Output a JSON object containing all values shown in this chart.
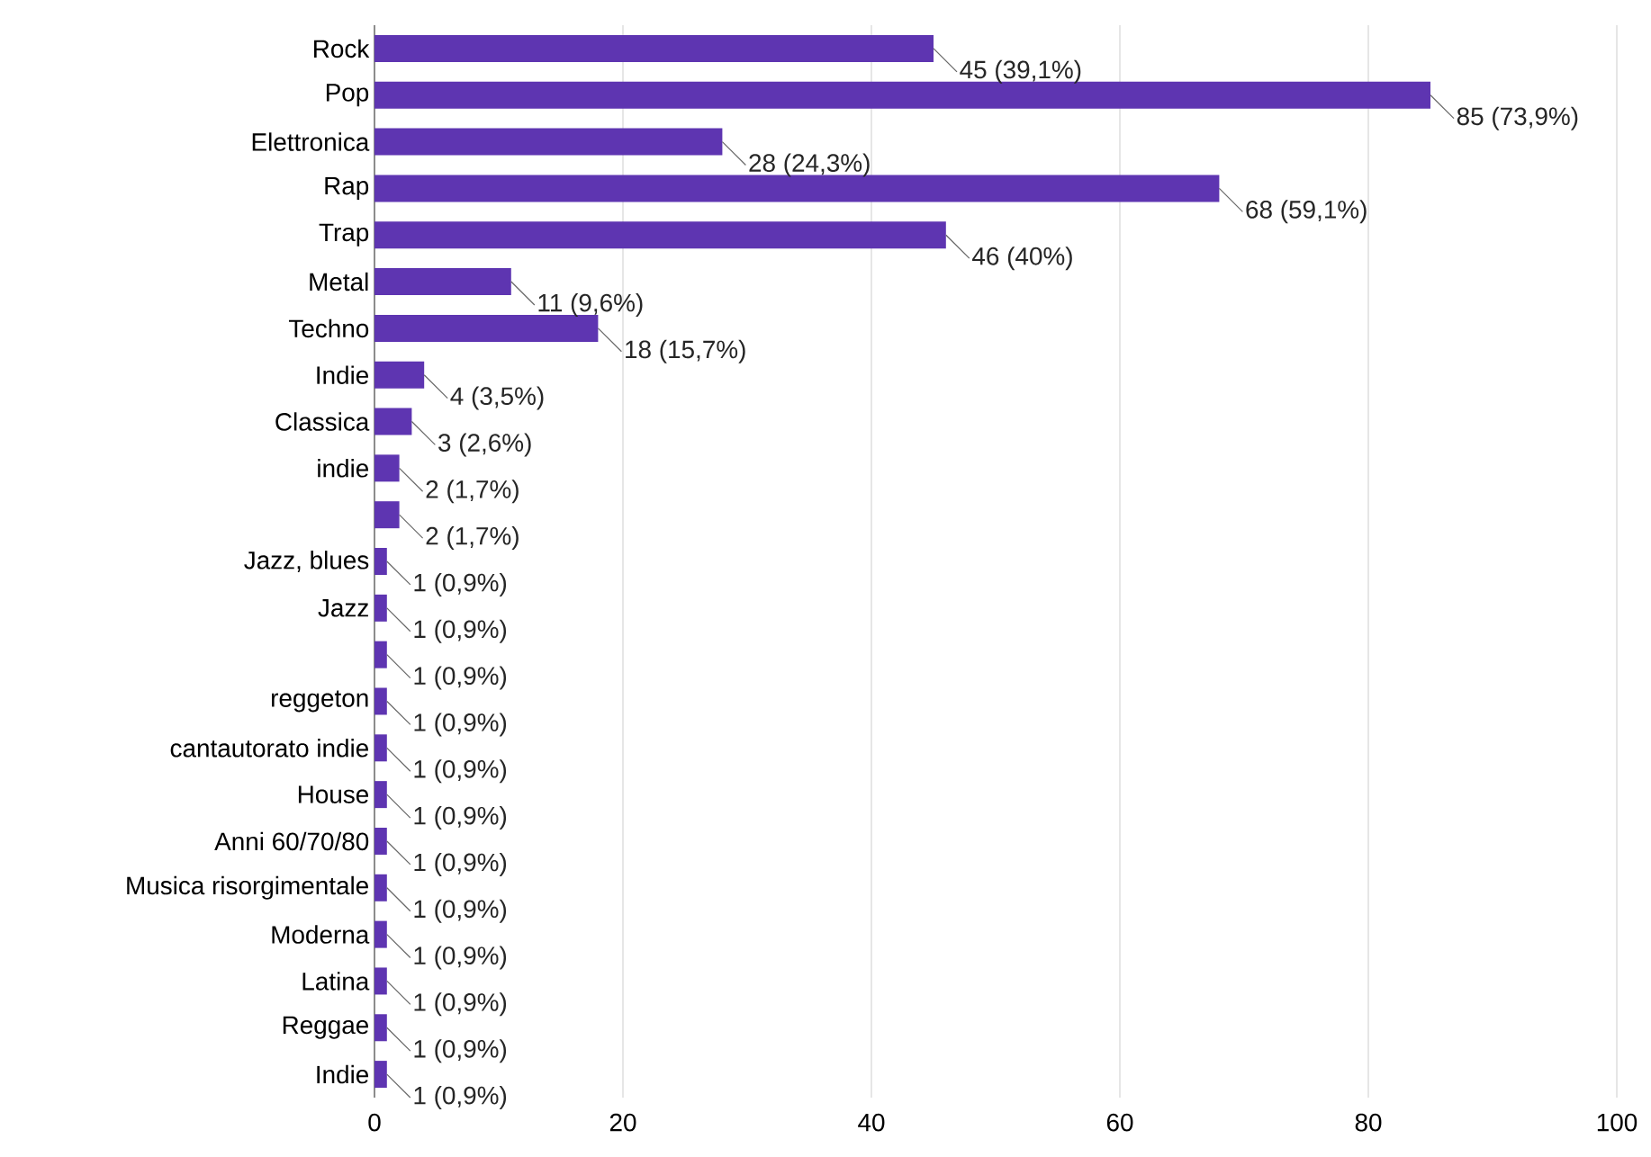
{
  "chart_data": {
    "type": "bar",
    "orientation": "horizontal",
    "color": "#5e35b1",
    "grid": "x",
    "categories": [
      "Rock",
      "Pop",
      "Elettronica",
      "Rap",
      "Trap",
      "Metal",
      "Techno",
      "Indie",
      "Classica",
      "indie",
      null,
      "Jazz, blues",
      "Jazz",
      null,
      "reggeton",
      "cantautorato indie",
      "House",
      "Anni 60/70/80",
      "Musica risorgimentale",
      "Moderna",
      "Latina",
      "Reggae",
      "Indie"
    ],
    "values": [
      45,
      85,
      28,
      68,
      46,
      11,
      18,
      4,
      3,
      2,
      2,
      1,
      1,
      1,
      1,
      1,
      1,
      1,
      1,
      1,
      1,
      1,
      1
    ],
    "value_labels": [
      "45 (39,1%)",
      "85 (73,9%)",
      "28 (24,3%)",
      "68 (59,1%)",
      "46 (40%)",
      "11 (9,6%)",
      "18 (15,7%)",
      "4 (3,5%)",
      "3 (2,6%)",
      "2 (1,7%)",
      "2 (1,7%)",
      "1 (0,9%)",
      "1 (0,9%)",
      "1 (0,9%)",
      "1 (0,9%)",
      "1 (0,9%)",
      "1 (0,9%)",
      "1 (0,9%)",
      "1 (0,9%)",
      "1 (0,9%)",
      "1 (0,9%)",
      "1 (0,9%)",
      "1 (0,9%)"
    ],
    "xlim": [
      0,
      100
    ],
    "xticks": [
      0,
      20,
      40,
      60,
      80,
      100
    ]
  }
}
